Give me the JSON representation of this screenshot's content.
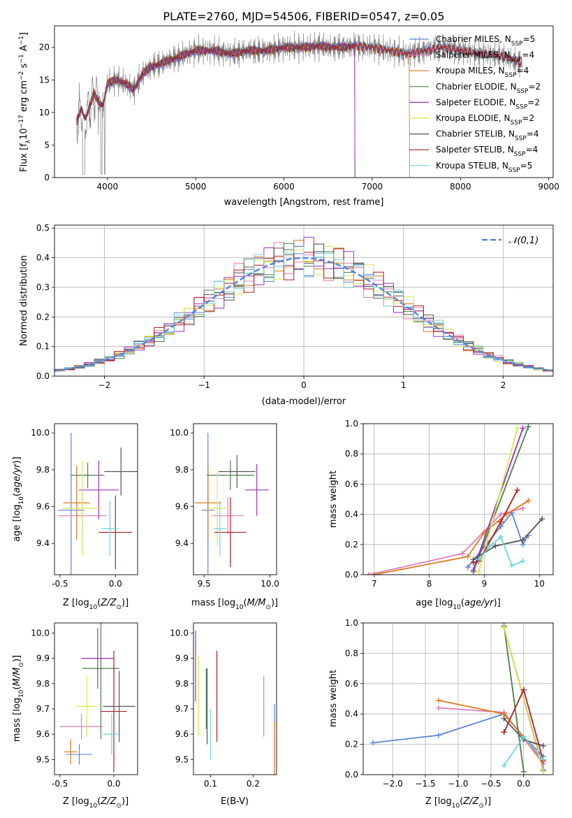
{
  "figure_title": "PLATE=2760, MJD=54506, FIBERID=0547, z=0.05",
  "model_colors": [
    "#5b83d6",
    "#e17bb5",
    "#de7a1f",
    "#4c7d4c",
    "#9c2fbf",
    "#d8e84a",
    "#555555",
    "#b01d1d",
    "#6fd4de"
  ],
  "chart_data": [
    {
      "id": "spectrum",
      "type": "line",
      "title": "PLATE=2760, MJD=54506, FIBERID=0547, z=0.05",
      "xlabel": "wavelength [Angstrom, rest frame]",
      "ylabel": "Flux [f$_\\lambda$10$^{-17}$ erg cm$^{-2}$ s$^{-1}$ A$^{-1}$]",
      "ylabel_parts": {
        "a": "Flux [f",
        "sub1": "λ",
        "b": "10",
        "sup1": "−17",
        "c": " erg cm",
        "sup2": "−2",
        "d": " s",
        "sup3": "−1",
        "e": " A",
        "sup4": "−1",
        "f": "]"
      },
      "xlim": [
        3400,
        9050
      ],
      "ylim": [
        0,
        23.3
      ],
      "xticks": [
        4000,
        5000,
        6000,
        7000,
        8000,
        9000
      ],
      "yticks": [
        0,
        5,
        10,
        15,
        20
      ],
      "grid": false,
      "legend_position": "top-right",
      "data_color": "#808080",
      "spectrum_shape": {
        "x": [
          3650,
          3700,
          3750,
          3800,
          3850,
          3900,
          3950,
          4000,
          4100,
          4200,
          4300,
          4400,
          4500,
          4600,
          4700,
          4800,
          4900,
          5000,
          5200,
          5400,
          5600,
          5800,
          6000,
          6200,
          6400,
          6600,
          6800,
          7000,
          7200,
          7400,
          7600,
          7800,
          8000,
          8200,
          8400,
          8500,
          8600,
          8700
        ],
        "y": [
          8.5,
          10.5,
          9.0,
          11.0,
          13.0,
          11.5,
          11.0,
          14.5,
          15.0,
          14.5,
          13.5,
          16.0,
          17.0,
          17.5,
          18.0,
          18.5,
          19.0,
          19.5,
          19.5,
          19.0,
          19.5,
          19.5,
          20.0,
          20.0,
          20.2,
          20.0,
          20.2,
          20.0,
          19.5,
          19.0,
          19.5,
          20.0,
          19.5,
          19.0,
          18.8,
          18.5,
          18.0,
          17.5
        ]
      },
      "series": [
        {
          "name": "Chabrier MILES",
          "nssp": "5",
          "end": 8700
        },
        {
          "name": "Salpeter MILES",
          "nssp": "4",
          "end": 8700
        },
        {
          "name": "Kroupa MILES",
          "nssp": "4",
          "end": 7420
        },
        {
          "name": "Chabrier ELODIE",
          "nssp": "2",
          "end": 6800
        },
        {
          "name": "Salpeter ELODIE",
          "nssp": "2",
          "end": 6800
        },
        {
          "name": "Kroupa ELODIE",
          "nssp": "2",
          "end": 6800
        },
        {
          "name": "Chabrier STELIB",
          "nssp": "4",
          "end": 8700
        },
        {
          "name": "Salpeter STELIB",
          "nssp": "4",
          "end": 8700
        },
        {
          "name": "Kroupa STELIB",
          "nssp": "5",
          "end": 8700
        }
      ],
      "legend_sub_prefix": "N",
      "legend_sub": "SSP"
    },
    {
      "id": "residuals",
      "type": "histogram",
      "xlabel": "(data-model)/error",
      "ylabel": "Normed distribution",
      "xlim": [
        -2.5,
        2.5
      ],
      "ylim": [
        0,
        0.51
      ],
      "xticks": [
        -2,
        -1,
        0,
        1,
        2
      ],
      "yticks": [
        0.0,
        0.1,
        0.2,
        0.3,
        0.4,
        0.5
      ],
      "grid": true,
      "legend_position": "top-right",
      "legend_entry": "𝒩(0,1)",
      "bin_width": 0.1,
      "bin_start": -2.5,
      "gaussian": {
        "mean": 0,
        "sigma": 1,
        "color": "#5b83d6"
      }
    },
    {
      "id": "age-vs-Z",
      "type": "errorbar",
      "xlabel": "Z [log$_{10}$(Z/Z$_\\odot$)]",
      "xlabel_parts": {
        "a": "Z [log",
        "sub": "10",
        "b": "(",
        "it": "Z/Z",
        "sub2": "⊙",
        "c": ")]"
      },
      "ylabel": "age  [log$_{10}$(age/yr)]",
      "ylabel_parts": {
        "a": "age  [log",
        "sub": "10",
        "b": "(",
        "it": "age/yr",
        "c": ")]"
      },
      "xlim": [
        -0.55,
        0.2
      ],
      "ylim": [
        9.23,
        10.05
      ],
      "xticks": [
        -0.5,
        0.0
      ],
      "yticks": [
        9.4,
        9.6,
        9.8,
        10.0
      ],
      "points": [
        {
          "x": -0.4,
          "xerr": 0.12,
          "y": 9.58,
          "yerr": 0.42
        },
        {
          "x": -0.3,
          "xerr": 0.22,
          "y": 9.55,
          "yerr": 0.1
        },
        {
          "x": -0.35,
          "xerr": 0.12,
          "y": 9.62,
          "yerr": 0.2
        },
        {
          "x": -0.25,
          "xerr": 0.15,
          "y": 9.77,
          "yerr": 0.07
        },
        {
          "x": -0.15,
          "xerr": 0.18,
          "y": 9.69,
          "yerr": 0.16
        },
        {
          "x": -0.3,
          "xerr": 0.18,
          "y": 9.59,
          "yerr": 0.26
        },
        {
          "x": 0.05,
          "xerr": 0.15,
          "y": 9.79,
          "yerr": 0.13
        },
        {
          "x": 0.0,
          "xerr": 0.15,
          "y": 9.46,
          "yerr": 0.2
        },
        {
          "x": -0.05,
          "xerr": 0.08,
          "y": 9.48,
          "yerr": 0.15
        }
      ]
    },
    {
      "id": "age-vs-mass",
      "type": "errorbar",
      "xlabel": "mass [log$_{10}$(M/M$_\\odot$)]",
      "xlabel_parts": {
        "a": "mass [log",
        "sub": "10",
        "b": "(",
        "it": "M/M",
        "sub2": "⊙",
        "c": ")]"
      },
      "xlim": [
        9.42,
        10.05
      ],
      "ylim": [
        9.23,
        10.05
      ],
      "xticks": [
        9.5,
        10.0
      ],
      "yticks": [
        9.4,
        9.6,
        9.8,
        10.0
      ],
      "points": [
        {
          "x": 9.53,
          "xerr": 0.05,
          "y": 9.58,
          "yerr": 0.42
        },
        {
          "x": 9.68,
          "xerr": 0.12,
          "y": 9.55,
          "yerr": 0.1
        },
        {
          "x": 9.53,
          "xerr": 0.1,
          "y": 9.62,
          "yerr": 0.2
        },
        {
          "x": 9.7,
          "xerr": 0.18,
          "y": 9.77,
          "yerr": 0.08
        },
        {
          "x": 9.9,
          "xerr": 0.09,
          "y": 9.69,
          "yerr": 0.14
        },
        {
          "x": 9.6,
          "xerr": 0.07,
          "y": 9.59,
          "yerr": 0.2
        },
        {
          "x": 9.75,
          "xerr": 0.14,
          "y": 9.79,
          "yerr": 0.09
        },
        {
          "x": 9.7,
          "xerr": 0.12,
          "y": 9.46,
          "yerr": 0.19
        },
        {
          "x": 9.62,
          "xerr": 0.05,
          "y": 9.48,
          "yerr": 0.15
        }
      ]
    },
    {
      "id": "massweight-vs-age",
      "type": "line",
      "xlabel": "age  [log$_{10}$(age/yr)]",
      "ylabel": "mass weight",
      "xlim": [
        6.8,
        10.25
      ],
      "ylim": [
        0,
        1.0
      ],
      "xticks": [
        7,
        8,
        9,
        10
      ],
      "yticks": [
        0.0,
        0.2,
        0.4,
        0.6,
        0.8,
        1.0
      ],
      "grid": true,
      "series": [
        {
          "x": [
            8.7,
            9.3,
            9.5,
            9.7,
            9.8
          ],
          "y": [
            0.05,
            0.32,
            0.41,
            0.2,
            0.26
          ]
        },
        {
          "x": [
            6.9,
            8.6,
            9.3,
            9.7
          ],
          "y": [
            0.0,
            0.14,
            0.4,
            0.44
          ]
        },
        {
          "x": [
            7.0,
            8.7,
            9.0,
            9.4,
            9.8
          ],
          "y": [
            0.0,
            0.12,
            0.28,
            0.4,
            0.49
          ]
        },
        {
          "x": [
            8.8,
            9.8
          ],
          "y": [
            0.02,
            0.98
          ]
        },
        {
          "x": [
            8.8,
            9.7
          ],
          "y": [
            0.03,
            0.97
          ]
        },
        {
          "x": [
            8.9,
            9.6
          ],
          "y": [
            0.02,
            0.97
          ]
        },
        {
          "x": [
            8.8,
            9.2,
            9.7,
            10.05
          ],
          "y": [
            0.1,
            0.19,
            0.23,
            0.37
          ]
        },
        {
          "x": [
            8.8,
            8.9,
            9.3,
            9.6
          ],
          "y": [
            0.08,
            0.09,
            0.35,
            0.56
          ]
        },
        {
          "x": [
            8.9,
            9.1,
            9.3,
            9.5,
            9.7
          ],
          "y": [
            0.1,
            0.19,
            0.25,
            0.06,
            0.09
          ]
        }
      ]
    },
    {
      "id": "mass-vs-Z",
      "type": "errorbar",
      "xlabel": "Z [log$_{10}$(Z/Z$_\\odot$)]",
      "ylabel": "mass [log$_{10}$(M/M$_\\odot$)]",
      "ylabel_parts": {
        "a": "mass [log",
        "sub": "10",
        "b": "(",
        "it": "M/M",
        "sub2": "⊙",
        "c": ")]"
      },
      "xlim": [
        -0.55,
        0.22
      ],
      "ylim": [
        9.44,
        10.04
      ],
      "xticks": [
        -0.5,
        0.0
      ],
      "yticks": [
        9.5,
        9.6,
        9.7,
        9.8,
        9.9,
        10.0
      ],
      "points": [
        {
          "x": -0.32,
          "xerr": 0.12,
          "y": 9.52,
          "yerr": 0.04
        },
        {
          "x": -0.3,
          "xerr": 0.2,
          "y": 9.63,
          "yerr": 0.05
        },
        {
          "x": -0.4,
          "xerr": 0.06,
          "y": 9.53,
          "yerr": 0.05
        },
        {
          "x": -0.12,
          "xerr": 0.17,
          "y": 9.86,
          "yerr": 0.28
        },
        {
          "x": -0.15,
          "xerr": 0.15,
          "y": 9.9,
          "yerr": 0.12
        },
        {
          "x": -0.25,
          "xerr": 0.1,
          "y": 9.71,
          "yerr": 0.12
        },
        {
          "x": 0.05,
          "xerr": 0.15,
          "y": 9.71,
          "yerr": 0.14
        },
        {
          "x": 0.0,
          "xerr": 0.12,
          "y": 9.69,
          "yerr": 0.24
        },
        {
          "x": -0.02,
          "xerr": 0.08,
          "y": 9.6,
          "yerr": 0.08
        }
      ]
    },
    {
      "id": "mass-vs-ebv",
      "type": "errorbar",
      "xlabel": "E(B-V)",
      "xlim": [
        0.06,
        0.255
      ],
      "ylim": [
        9.44,
        10.04
      ],
      "xticks": [
        0.1,
        0.2
      ],
      "yticks": [
        9.5,
        9.6,
        9.7,
        9.8,
        9.9,
        10.0
      ],
      "points": [
        {
          "x": 0.25,
          "xerr": 0.0,
          "y": 9.52,
          "yerr": 0.2
        },
        {
          "x": 0.225,
          "xerr": 0.0,
          "y": 9.71,
          "yerr": 0.12
        },
        {
          "x": 0.25,
          "xerr": 0.0,
          "y": 9.53,
          "yerr": 0.12
        },
        {
          "x": 0.09,
          "xerr": 0.0,
          "y": 9.74,
          "yerr": 0.12
        },
        {
          "x": 0.065,
          "xerr": 0.0,
          "y": 9.87,
          "yerr": 0.14
        },
        {
          "x": 0.072,
          "xerr": 0.0,
          "y": 9.75,
          "yerr": 0.16
        },
        {
          "x": 0.092,
          "xerr": 0.0,
          "y": 9.71,
          "yerr": 0.15
        },
        {
          "x": 0.115,
          "xerr": 0.0,
          "y": 9.75,
          "yerr": 0.18
        },
        {
          "x": 0.1,
          "xerr": 0.0,
          "y": 9.6,
          "yerr": 0.1
        }
      ]
    },
    {
      "id": "massweight-vs-Z",
      "type": "line",
      "xlabel": "Z [log$_{10}$(Z/Z$_\\odot$)]",
      "ylabel": "mass weight",
      "xlim": [
        -2.45,
        0.45
      ],
      "ylim": [
        0,
        1.0
      ],
      "xticks": [
        -2.0,
        -1.5,
        -1.0,
        -0.5,
        0.0
      ],
      "yticks": [
        0.0,
        0.2,
        0.4,
        0.6,
        0.8,
        1.0
      ],
      "grid": true,
      "series": [
        {
          "x": [
            -2.3,
            -1.3,
            -0.3,
            0.0,
            0.3
          ],
          "y": [
            0.21,
            0.26,
            0.4,
            0.25,
            0.12
          ]
        },
        {
          "x": [
            -1.3,
            -0.3,
            0.3
          ],
          "y": [
            0.44,
            0.41,
            0.07
          ]
        },
        {
          "x": [
            -1.3,
            -0.3,
            0.3
          ],
          "y": [
            0.49,
            0.4,
            0.09
          ]
        },
        {
          "x": [
            -0.3,
            0.0
          ],
          "y": [
            0.98,
            0.02
          ]
        },
        {
          "x": [
            -0.3,
            0.3
          ],
          "y": [
            0.97,
            0.03
          ]
        },
        {
          "x": [
            -0.3,
            0.3
          ],
          "y": [
            0.97,
            0.02
          ]
        },
        {
          "x": [
            -0.3,
            0.0,
            0.3
          ],
          "y": [
            0.37,
            0.23,
            0.19
          ]
        },
        {
          "x": [
            -0.3,
            0.0,
            0.3
          ],
          "y": [
            0.28,
            0.56,
            0.09
          ]
        },
        {
          "x": [
            -0.3,
            0.0,
            0.3
          ],
          "y": [
            0.06,
            0.25,
            0.1
          ]
        }
      ]
    }
  ]
}
